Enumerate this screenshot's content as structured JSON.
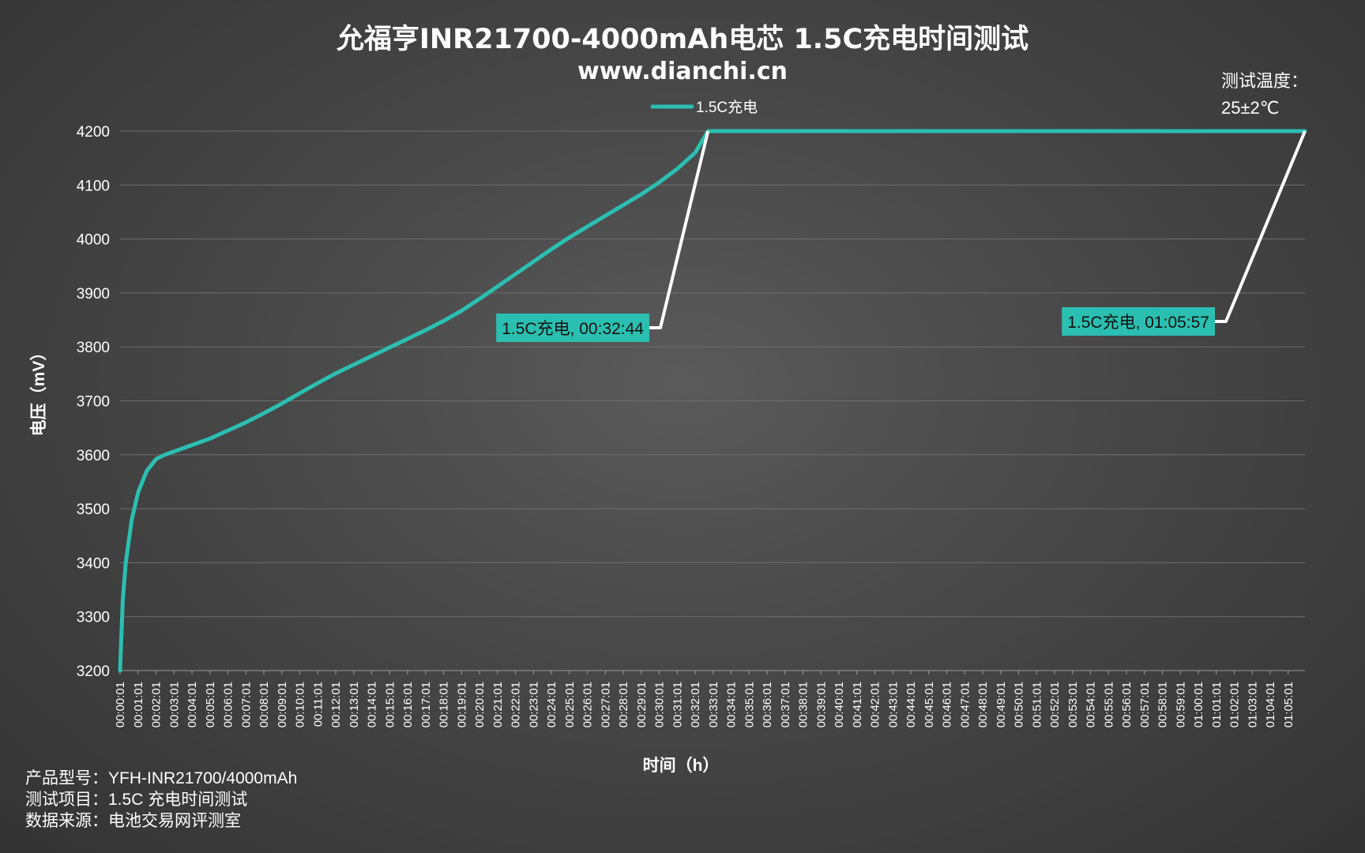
{
  "chart_data": {
    "type": "line",
    "title": "允福亨INR21700-4000mAh电芯 1.5C充电时间测试",
    "subtitle": "www.dianchi.cn",
    "xlabel": "时间（h）",
    "ylabel": "电压（mV）",
    "ylim": [
      3200,
      4200
    ],
    "yticks": [
      3200,
      3300,
      3400,
      3500,
      3600,
      3700,
      3800,
      3900,
      4000,
      4100,
      4200
    ],
    "grid": "horizontal",
    "legend_position": "top-center",
    "x_categories": [
      "00:00:01",
      "00:01:01",
      "00:02:01",
      "00:03:01",
      "00:04:01",
      "00:05:01",
      "00:06:01",
      "00:07:01",
      "00:08:01",
      "00:09:01",
      "00:10:01",
      "00:11:01",
      "00:12:01",
      "00:13:01",
      "00:14:01",
      "00:15:01",
      "00:16:01",
      "00:17:01",
      "00:18:01",
      "00:19:01",
      "00:20:01",
      "00:21:01",
      "00:22:01",
      "00:23:01",
      "00:24:01",
      "00:25:01",
      "00:26:01",
      "00:27:01",
      "00:28:01",
      "00:29:01",
      "00:30:01",
      "00:31:01",
      "00:32:01",
      "00:33:01",
      "00:34:01",
      "00:35:01",
      "00:36:01",
      "00:37:01",
      "00:38:01",
      "00:39:01",
      "00:40:01",
      "00:41:01",
      "00:42:01",
      "00:43:01",
      "00:44:01",
      "00:45:01",
      "00:46:01",
      "00:47:01",
      "00:48:01",
      "00:49:01",
      "00:50:01",
      "00:51:01",
      "00:52:01",
      "00:53:01",
      "00:54:01",
      "00:55:01",
      "00:56:01",
      "00:57:01",
      "00:58:01",
      "00:59:01",
      "01:00:01",
      "01:01:01",
      "01:02:01",
      "01:03:01",
      "01:04:01",
      "01:05:01"
    ],
    "x_end": "01:05:57",
    "series": [
      {
        "name": "1.5C充电",
        "color": "#2bbfb1",
        "points": [
          [
            "00:00:01",
            3200
          ],
          [
            "00:00:10",
            3330
          ],
          [
            "00:00:20",
            3400
          ],
          [
            "00:00:40",
            3480
          ],
          [
            "00:01:01",
            3530
          ],
          [
            "00:01:30",
            3570
          ],
          [
            "00:02:01",
            3592
          ],
          [
            "00:02:30",
            3600
          ],
          [
            "00:03:01",
            3606
          ],
          [
            "00:04:01",
            3618
          ],
          [
            "00:05:01",
            3630
          ],
          [
            "00:06:01",
            3645
          ],
          [
            "00:07:01",
            3660
          ],
          [
            "00:08:01",
            3677
          ],
          [
            "00:09:01",
            3695
          ],
          [
            "00:10:01",
            3714
          ],
          [
            "00:11:01",
            3733
          ],
          [
            "00:12:01",
            3751
          ],
          [
            "00:13:01",
            3767
          ],
          [
            "00:14:01",
            3783
          ],
          [
            "00:15:01",
            3799
          ],
          [
            "00:16:01",
            3815
          ],
          [
            "00:17:01",
            3831
          ],
          [
            "00:18:01",
            3848
          ],
          [
            "00:19:01",
            3867
          ],
          [
            "00:20:01",
            3889
          ],
          [
            "00:21:01",
            3912
          ],
          [
            "00:22:01",
            3935
          ],
          [
            "00:23:01",
            3958
          ],
          [
            "00:24:01",
            3981
          ],
          [
            "00:25:01",
            4003
          ],
          [
            "00:26:01",
            4023
          ],
          [
            "00:27:01",
            4043
          ],
          [
            "00:28:01",
            4063
          ],
          [
            "00:29:01",
            4083
          ],
          [
            "00:30:01",
            4105
          ],
          [
            "00:31:01",
            4130
          ],
          [
            "00:32:01",
            4160
          ],
          [
            "00:32:44",
            4200
          ],
          [
            "01:05:57",
            4200
          ]
        ]
      }
    ],
    "annotations": [
      {
        "label": "1.5C充电, 00:32:44",
        "x": "00:32:44",
        "y": 4200
      },
      {
        "label": "1.5C充电, 01:05:57",
        "x": "01:05:57",
        "y": 4200
      }
    ]
  },
  "temperature": {
    "label": "测试温度：",
    "value": "25±2℃"
  },
  "footer": [
    "产品型号：YFH-INR21700/4000mAh",
    "测试项目：1.5C 充电时间测试",
    "数据来源：电池交易网评测室"
  ],
  "colors": {
    "series": "#2bbfb1",
    "leader": "#ffffff",
    "grid": "#6e6e6e",
    "axis": "#9a9a9a",
    "callout_bg": "#2bbfb1"
  }
}
